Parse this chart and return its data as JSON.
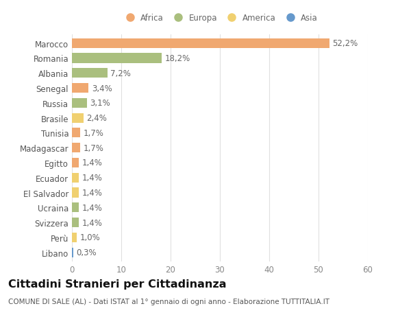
{
  "countries": [
    "Marocco",
    "Romania",
    "Albania",
    "Senegal",
    "Russia",
    "Brasile",
    "Tunisia",
    "Madagascar",
    "Egitto",
    "Ecuador",
    "El Salvador",
    "Ucraina",
    "Svizzera",
    "Perù",
    "Libano"
  ],
  "values": [
    52.2,
    18.2,
    7.2,
    3.4,
    3.1,
    2.4,
    1.7,
    1.7,
    1.4,
    1.4,
    1.4,
    1.4,
    1.4,
    1.0,
    0.3
  ],
  "labels": [
    "52,2%",
    "18,2%",
    "7,2%",
    "3,4%",
    "3,1%",
    "2,4%",
    "1,7%",
    "1,7%",
    "1,4%",
    "1,4%",
    "1,4%",
    "1,4%",
    "1,4%",
    "1,0%",
    "0,3%"
  ],
  "continents": [
    "Africa",
    "Europa",
    "Europa",
    "Africa",
    "Europa",
    "America",
    "Africa",
    "Africa",
    "Africa",
    "America",
    "America",
    "Europa",
    "Europa",
    "America",
    "Asia"
  ],
  "continent_colors": {
    "Africa": "#F0A870",
    "Europa": "#AABF7E",
    "America": "#F0D070",
    "Asia": "#6699CC"
  },
  "legend_items": [
    "Africa",
    "Europa",
    "America",
    "Asia"
  ],
  "title": "Cittadini Stranieri per Cittadinanza",
  "subtitle": "COMUNE DI SALE (AL) - Dati ISTAT al 1° gennaio di ogni anno - Elaborazione TUTTITALIA.IT",
  "xlim": [
    0,
    60
  ],
  "xticks": [
    0,
    10,
    20,
    30,
    40,
    50,
    60
  ],
  "background_color": "#ffffff",
  "grid_color": "#e0e0e0",
  "bar_height": 0.65,
  "title_fontsize": 11.5,
  "subtitle_fontsize": 7.5,
  "tick_fontsize": 8.5,
  "label_fontsize": 8.5
}
